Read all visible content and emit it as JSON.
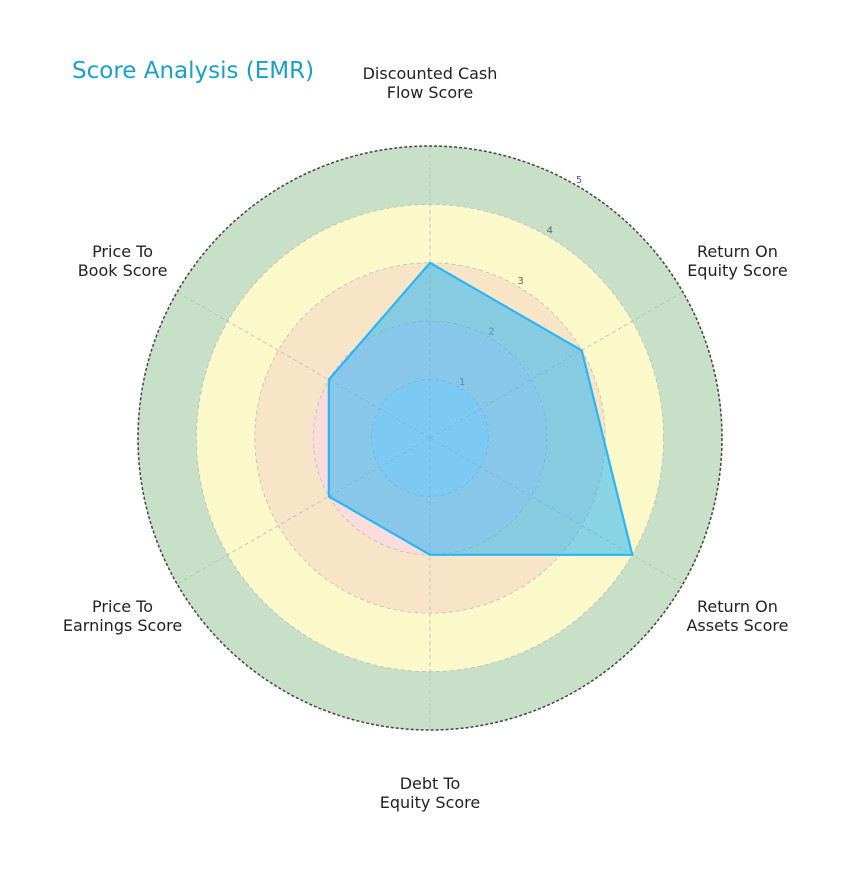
{
  "chart_data": {
    "type": "radar",
    "title": "Score Analysis (EMR)",
    "categories": [
      "Discounted Cash\nFlow Score",
      "Return On\nEquity Score",
      "Return On\nAssets Score",
      "Debt To\nEquity Score",
      "Price To\nEarnings Score",
      "Price To\nBook Score"
    ],
    "series": [
      {
        "name": "EMR",
        "color": "#29b6f6",
        "values": [
          3,
          3,
          4,
          2,
          2,
          2
        ]
      }
    ],
    "ylim": [
      0,
      5
    ],
    "yticks": [
      1,
      2,
      3,
      4,
      5
    ],
    "grid": true
  }
}
